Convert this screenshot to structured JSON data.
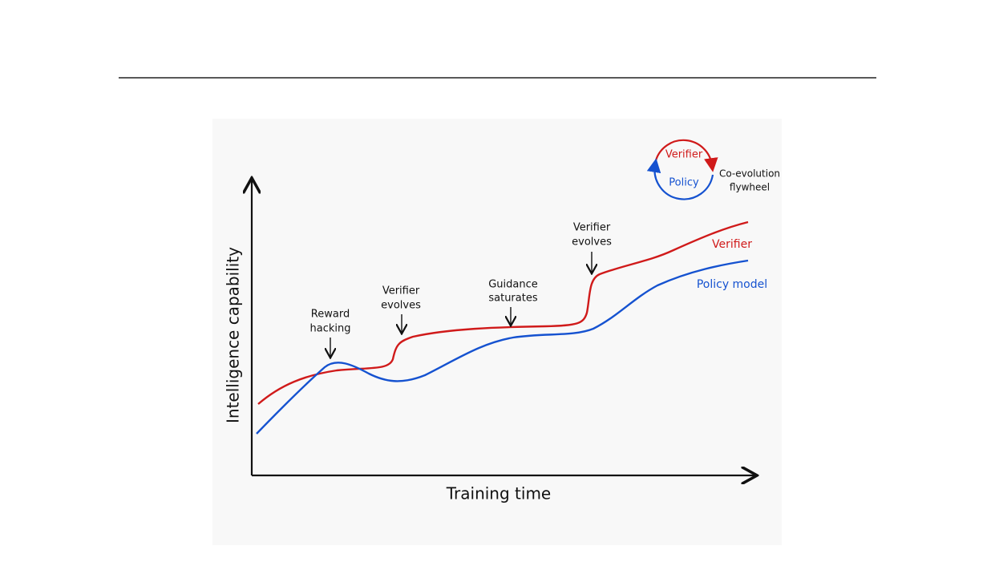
{
  "figure": {
    "y_axis_label": "Intelligence capability",
    "x_axis_label": "Training time",
    "annotations": [
      {
        "lines": [
          "Reward",
          "hacking"
        ]
      },
      {
        "lines": [
          "Verifier",
          "evolves"
        ]
      },
      {
        "lines": [
          "Guidance",
          "saturates"
        ]
      },
      {
        "lines": [
          "Verifier",
          "evolves"
        ]
      }
    ],
    "curve_labels": [
      "Verifier",
      "Policy model"
    ],
    "flywheel": {
      "top": "Verifier",
      "bottom": "Policy",
      "caption": [
        "Co-evolution",
        "flywheel"
      ]
    }
  }
}
